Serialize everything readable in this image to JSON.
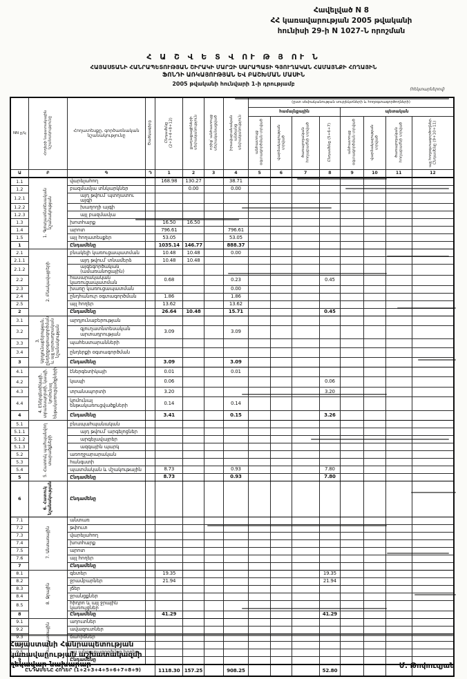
{
  "doc": {
    "appendix_lines": [
      "Հավելված N 8",
      "ՀՀ կառավարության 2005 թվականի",
      "հունիսի 29-ի N 1027-Ն որոշման"
    ],
    "title_main": "Հ Ա Շ Վ Ե Տ Վ ՈՒ Թ Յ ՈՒ Ն",
    "title_sub1": "ՀԱՅԱՍՏԱՆԻ ՀԱՆՐԱՊԵՏՈՒԹՅԱՆ ՇԻՐԱԿԻ ՄԱՐԶԻ ՍԱՐԱՊԱՏԻ ԳՅՈՒՂԱԿԱՆ ՀԱՄԱՅՆՔԻ ՀՈՂԱՅԻՆ",
    "title_sub2": "ՖՈՆԴԻ ԱՌԿԱՅՈՒԹՅԱՆ ԵՎ ԲԱՇԽՄԱՆ ՄԱՍԻՆ",
    "title_date": "2005 թվականի հունվարի 1-ի դրությամբ",
    "units_note": "(հեկտարներով)"
  },
  "table": {
    "head": {
      "corner_a": "NN ը/կ",
      "corner_b": "Հողերի նպատակային նշանակությունը",
      "corner_c": "Հողատեսքը, գործառնական նշանակությունը",
      "corner_d": "Ծածկագիրը",
      "col1": "Ընդամենը (2+3+4+8+12)",
      "col2": "քաղաքացիների սեփականություն",
      "col3": "որից՝ անհատույց սեփականացված",
      "col4": "իրավաբանական անձանց սեփականություն",
      "band": "(ըստ սեփականության սուբյեկտների և հողօգտագործողների)",
      "group1": "համայնքային",
      "group2": "պետական",
      "col5": "անհատույց օգտագործման տրված",
      "col6": "վարձակալության տրված",
      "col7": "ծառայողական հողաբաժնի տրված",
      "col8": "Ընդամենը (5+6+7)",
      "col9": "անհատույց օգտագործման տրված",
      "col10": "վարձակալության տրված",
      "col11": "ծառայողական հողաբաժնի տրված",
      "col12": "այլ հողօգտագործողներ. Ընդամենը (9+10+11)",
      "nums": [
        "Ա",
        "Բ",
        "Գ",
        "Դ",
        "1",
        "2",
        "3",
        "4",
        "5",
        "6",
        "7",
        "8",
        "9",
        "10",
        "11",
        "12"
      ]
    },
    "sections": [
      {
        "label": "1. Գյուղատնտեսական նշանակության",
        "rows": [
          {
            "num": "1.1",
            "label": "վարելահող",
            "v": {
              "1": "168.98",
              "2": "130.27",
              "4": "38.71"
            }
          },
          {
            "num": "1.2",
            "label": "բազմամյա տնկարկներ",
            "v": {
              "2": "0.00",
              "4": "0.00"
            }
          },
          {
            "num": "1.2.1",
            "label": "այդ թվում՝ պտղատու այգի",
            "indent": true
          },
          {
            "num": "1.2.2",
            "label": "խաղողի այգի",
            "indent": true
          },
          {
            "num": "1.2.3",
            "label": "այլ բազմամյա",
            "indent": true
          },
          {
            "num": "1.3",
            "label": "խոտհարք",
            "v": {
              "1": "16.50",
              "2": "16.50"
            }
          },
          {
            "num": "1.4",
            "label": "արոտ",
            "v": {
              "1": "796.61",
              "4": "796.61"
            }
          },
          {
            "num": "1.5",
            "label": "այլ հողատեսքեր",
            "v": {
              "1": "53.05",
              "4": "53.05"
            }
          },
          {
            "num": "1",
            "label": "Ընդամենը",
            "total": true,
            "v": {
              "1": "1035.14",
              "2": "146.77",
              "4": "888.37"
            }
          }
        ]
      },
      {
        "label": "2. Բնակավայրերի",
        "rows": [
          {
            "num": "2.1",
            "label": "բնակելի կառուցապատման",
            "v": {
              "1": "10.48",
              "2": "10.48",
              "4": "0.00"
            }
          },
          {
            "num": "2.1.1",
            "label": "այդ թվում՝ տնամերձ",
            "indent": true,
            "v": {
              "1": "10.48",
              "2": "10.48"
            }
          },
          {
            "num": "2.1.2",
            "label": "այգեգործական (ամառանոցային)",
            "indent": true
          },
          {
            "num": "2.2",
            "label": "հասարակական կառուցապատման",
            "v": {
              "1": "0.68",
              "4": "0.23",
              "8": "0.45"
            }
          },
          {
            "num": "2.3",
            "label": "խառը կառուցապատման",
            "v": {
              "4": "0.00"
            }
          },
          {
            "num": "2.4",
            "label": "ընդհանուր օգտագործման",
            "v": {
              "1": "1.86",
              "4": "1.86"
            }
          },
          {
            "num": "2.5",
            "label": "այլ հողեր",
            "v": {
              "1": "13.62",
              "4": "13.62"
            }
          },
          {
            "num": "2",
            "label": "Ընդամենը",
            "total": true,
            "v": {
              "1": "26.64",
              "2": "10.48",
              "4": "15.71",
              "8": "0.45"
            }
          }
        ]
      },
      {
        "label": "3. Արդյունաբերության, ընդերքօգտագործման և այլ արտադրական նշանակության",
        "rows": [
          {
            "num": "3.1",
            "label": "արդյունաբերության"
          },
          {
            "num": "3.2",
            "label": "գյուղատնտեսական արտադրության",
            "indent": true,
            "v": {
              "1": "3.09",
              "4": "3.09"
            }
          },
          {
            "num": "3.3",
            "label": "պահեստարանների"
          },
          {
            "num": "3.4",
            "label": "ընդերքի օգտագործման"
          },
          {
            "num": "3",
            "label": "Ընդամենը",
            "total": true,
            "v": {
              "1": "3.09",
              "4": "3.09"
            }
          }
        ]
      },
      {
        "label": "4. Էներգետիկայի, տրանսպորտի, կապի, կոմունալ ենթակառուցվածքների",
        "rows": [
          {
            "num": "4.1",
            "label": "էներգետիկայի",
            "v": {
              "1": "0.01",
              "4": "0.01"
            }
          },
          {
            "num": "4.2",
            "label": "կապի",
            "v": {
              "1": "0.06",
              "8": "0.06"
            }
          },
          {
            "num": "4.3",
            "label": "տրանսպորտի",
            "v": {
              "1": "3.20",
              "8": "3.20"
            }
          },
          {
            "num": "4.4",
            "label": "կոմունալ ենթակառուցվածքների",
            "v": {
              "1": "0.14",
              "4": "0.14"
            }
          },
          {
            "num": "4",
            "label": "Ընդամենը",
            "total": true,
            "v": {
              "1": "3.41",
              "4": "0.15",
              "8": "3.26"
            }
          }
        ]
      },
      {
        "label": "5. Հատուկ պահպանվող տարածքների",
        "rows": [
          {
            "num": "5.1",
            "label": "բնապահպանական"
          },
          {
            "num": "5.1.1",
            "label": "այդ թվում՝ արգելոցներ",
            "indent": true
          },
          {
            "num": "5.1.2",
            "label": "արգելավայրեր",
            "indent": true
          },
          {
            "num": "5.1.3",
            "label": "ազգային պարկ",
            "indent": true
          },
          {
            "num": "5.2",
            "label": "առողջարարական"
          },
          {
            "num": "5.3",
            "label": "հանգստի"
          },
          {
            "num": "5.4",
            "label": "պատմական և մշակութային",
            "v": {
              "1": "8.73",
              "4": "0.93",
              "8": "7.80"
            }
          },
          {
            "num": "5",
            "label": "Ընդամենը",
            "total": true,
            "v": {
              "1": "8.73",
              "4": "0.93",
              "8": "7.80"
            }
          }
        ]
      },
      {
        "label": "6. Հատուկ նշանակության",
        "tall": true,
        "rows": [
          {
            "num": "6",
            "label": "Ընդամենը",
            "total": true
          }
        ]
      },
      {
        "label": "7. Անտառային",
        "rows": [
          {
            "num": "7.1",
            "label": "անտառ"
          },
          {
            "num": "7.2",
            "label": "թփուտ"
          },
          {
            "num": "7.3",
            "label": "վարելահող"
          },
          {
            "num": "7.4",
            "label": "խոտհարք"
          },
          {
            "num": "7.5",
            "label": "արոտ"
          },
          {
            "num": "7.6",
            "label": "այլ հողեր"
          },
          {
            "num": "7",
            "label": "Ընդամենը",
            "total": true
          }
        ]
      },
      {
        "label": "8. Ջրային",
        "rows": [
          {
            "num": "8.1",
            "label": "գետեր",
            "v": {
              "1": "19.35",
              "8": "19.35"
            }
          },
          {
            "num": "8.2",
            "label": "ջրամբարներ",
            "v": {
              "1": "21.94",
              "8": "21.94"
            }
          },
          {
            "num": "8.3",
            "label": "լճեր"
          },
          {
            "num": "8.4",
            "label": "ջրանցքներ"
          },
          {
            "num": "8.5",
            "label": "հիդրո և այլ ջրային կառույցներ"
          },
          {
            "num": "8",
            "label": "Ընդամենը",
            "total": true,
            "v": {
              "1": "41.29",
              "8": "41.29"
            }
          }
        ]
      },
      {
        "label": "9. Պահուստային",
        "rows": [
          {
            "num": "9.1",
            "label": "աղուտներ"
          },
          {
            "num": "9.2",
            "label": "ավազուտներ"
          },
          {
            "num": "9.3",
            "label": "ճահիճներ"
          },
          {
            "num": "9.4",
            "label": ""
          },
          {
            "num": "9.5",
            "label": "այլ անօգտագործվող հողեր"
          },
          {
            "num": "9",
            "label": "Ընդամենը",
            "total": true
          }
        ]
      }
    ],
    "grand": {
      "label": "ԸՆԴԱՄԵՆԸ ՀՈՂԵՐ (1+2+3+4+5+6+7+8+9)",
      "v": {
        "1": "1118.30",
        "2": "157.25",
        "4": "908.25",
        "8": "52.80"
      }
    }
  },
  "footer": {
    "office_lines": [
      "Հայաստանի Հանրապետության",
      "կառավարության աշխատակազմի",
      "ղեկավար-նախարար"
    ],
    "signatory": "Մ. Թոփուզյան"
  }
}
